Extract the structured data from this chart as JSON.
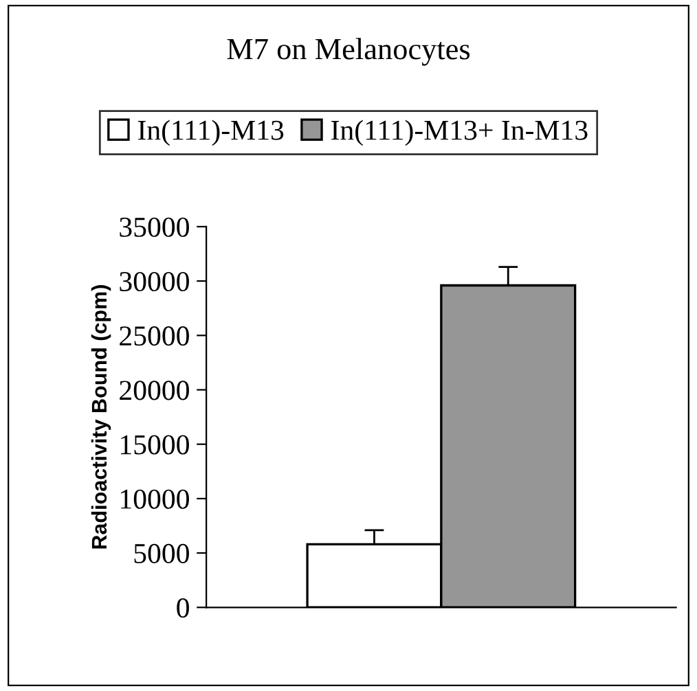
{
  "chart_data": {
    "type": "bar",
    "title": "M7 on Melanocytes",
    "ylabel": "Radioactivity Bound (cpm)",
    "categories": [
      null
    ],
    "series": [
      {
        "name": "In(111)-M13",
        "color": "#ffffff",
        "values": [
          5800
        ],
        "errors": [
          1300
        ]
      },
      {
        "name": "In(111)-M13+ In-M13",
        "color": "#969696",
        "values": [
          29600
        ],
        "errors": [
          1700
        ]
      }
    ],
    "ylim": [
      0,
      35000
    ],
    "yticks": [
      0,
      5000,
      10000,
      15000,
      20000,
      25000,
      30000,
      35000
    ],
    "grid": false,
    "legend": "top"
  }
}
